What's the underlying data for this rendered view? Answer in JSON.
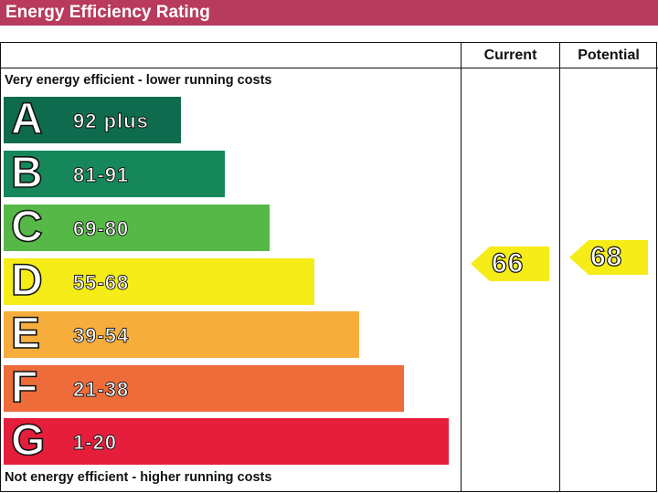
{
  "title": "Energy Efficiency Rating",
  "columns": {
    "current": "Current",
    "potential": "Potential"
  },
  "top_note": "Very energy efficient - lower running costs",
  "bottom_note": "Not energy efficient - higher running costs",
  "chart_data": {
    "type": "bar",
    "title": "Energy Efficiency Rating",
    "bands": [
      {
        "letter": "A",
        "range": "92 plus",
        "color": "#0f6b4e"
      },
      {
        "letter": "B",
        "range": "81-91",
        "color": "#16875a"
      },
      {
        "letter": "C",
        "range": "69-80",
        "color": "#56b947"
      },
      {
        "letter": "D",
        "range": "55-68",
        "color": "#f5ec18"
      },
      {
        "letter": "E",
        "range": "39-54",
        "color": "#f6ad3c"
      },
      {
        "letter": "F",
        "range": "21-38",
        "color": "#ee6b3a"
      },
      {
        "letter": "G",
        "range": "1-20",
        "color": "#e41e3b"
      }
    ],
    "current": {
      "value": "66",
      "band": "D",
      "color": "#f5ec18"
    },
    "potential": {
      "value": "68",
      "band": "D",
      "color": "#f5ec18"
    }
  }
}
